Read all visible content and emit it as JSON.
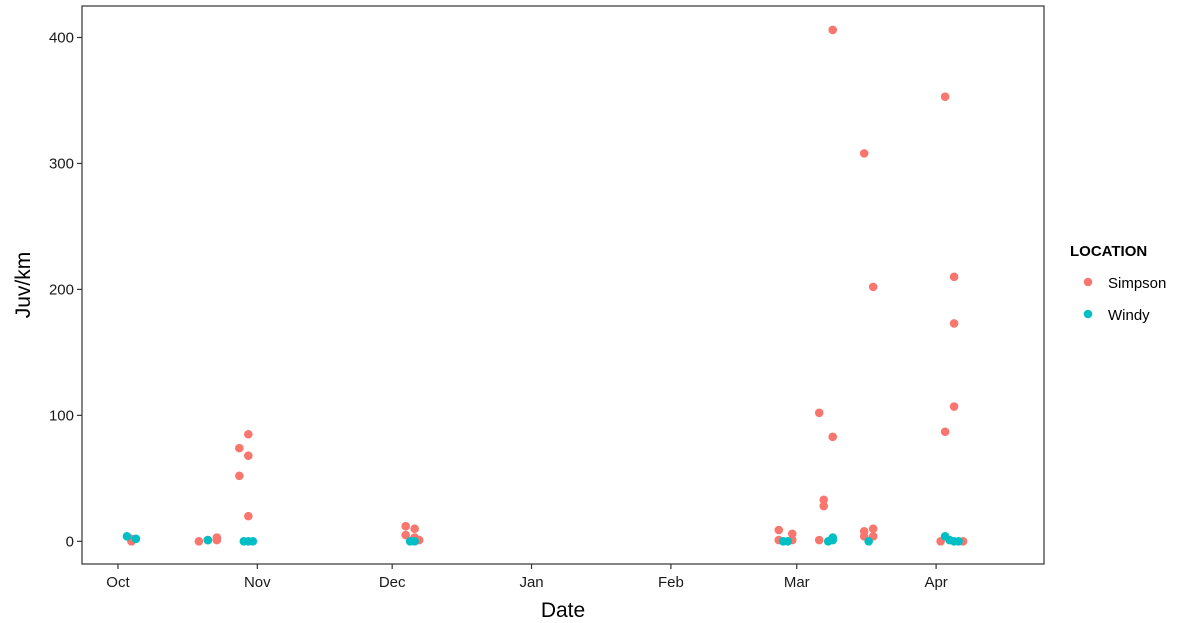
{
  "chart_data": {
    "type": "scatter",
    "title": "",
    "xlabel": "Date",
    "ylabel": "Juv/km",
    "x_axis": {
      "type": "date",
      "range": [
        "2014-09-23",
        "2015-04-25"
      ],
      "tick_values": [
        "2014-10-01",
        "2014-11-01",
        "2014-12-01",
        "2015-01-01",
        "2015-02-01",
        "2015-03-01",
        "2015-04-01"
      ],
      "tick_labels": [
        "Oct",
        "Nov",
        "Dec",
        "Jan",
        "Feb",
        "Mar",
        "Apr"
      ]
    },
    "y_axis": {
      "range": [
        -18,
        425
      ],
      "tick_values": [
        0,
        100,
        200,
        300,
        400
      ],
      "tick_labels": [
        "0",
        "100",
        "200",
        "300",
        "400"
      ]
    },
    "grid": false,
    "legend": {
      "title": "LOCATION",
      "position": "right",
      "entries": [
        "Simpson",
        "Windy"
      ]
    },
    "series": [
      {
        "name": "Simpson",
        "color": "#F8766D",
        "points": [
          {
            "x": "2014-10-04",
            "y": 0
          },
          {
            "x": "2014-10-04",
            "y": 2
          },
          {
            "x": "2014-10-19",
            "y": 0
          },
          {
            "x": "2014-10-21",
            "y": 1
          },
          {
            "x": "2014-10-23",
            "y": 1
          },
          {
            "x": "2014-10-23",
            "y": 3
          },
          {
            "x": "2014-10-28",
            "y": 74
          },
          {
            "x": "2014-10-28",
            "y": 52
          },
          {
            "x": "2014-10-30",
            "y": 85
          },
          {
            "x": "2014-10-30",
            "y": 68
          },
          {
            "x": "2014-10-30",
            "y": 20
          },
          {
            "x": "2014-12-04",
            "y": 12
          },
          {
            "x": "2014-12-04",
            "y": 5
          },
          {
            "x": "2014-12-06",
            "y": 10
          },
          {
            "x": "2014-12-06",
            "y": 3
          },
          {
            "x": "2014-12-07",
            "y": 1
          },
          {
            "x": "2015-02-25",
            "y": 9
          },
          {
            "x": "2015-02-25",
            "y": 1
          },
          {
            "x": "2015-02-28",
            "y": 6
          },
          {
            "x": "2015-02-28",
            "y": 1
          },
          {
            "x": "2015-03-06",
            "y": 102
          },
          {
            "x": "2015-03-06",
            "y": 1
          },
          {
            "x": "2015-03-07",
            "y": 33
          },
          {
            "x": "2015-03-07",
            "y": 28
          },
          {
            "x": "2015-03-09",
            "y": 406
          },
          {
            "x": "2015-03-09",
            "y": 83
          },
          {
            "x": "2015-03-16",
            "y": 308
          },
          {
            "x": "2015-03-16",
            "y": 8
          },
          {
            "x": "2015-03-16",
            "y": 4
          },
          {
            "x": "2015-03-18",
            "y": 202
          },
          {
            "x": "2015-03-18",
            "y": 10
          },
          {
            "x": "2015-03-18",
            "y": 4
          },
          {
            "x": "2015-04-02",
            "y": 0
          },
          {
            "x": "2015-04-03",
            "y": 353
          },
          {
            "x": "2015-04-03",
            "y": 87
          },
          {
            "x": "2015-04-05",
            "y": 210
          },
          {
            "x": "2015-04-05",
            "y": 173
          },
          {
            "x": "2015-04-05",
            "y": 107
          },
          {
            "x": "2015-04-07",
            "y": 0
          }
        ]
      },
      {
        "name": "Windy",
        "color": "#00BFC4",
        "points": [
          {
            "x": "2014-10-03",
            "y": 4
          },
          {
            "x": "2014-10-05",
            "y": 2
          },
          {
            "x": "2014-10-21",
            "y": 1
          },
          {
            "x": "2014-10-29",
            "y": 0
          },
          {
            "x": "2014-10-30",
            "y": 0
          },
          {
            "x": "2014-10-31",
            "y": 0
          },
          {
            "x": "2014-12-05",
            "y": 0
          },
          {
            "x": "2014-12-06",
            "y": 0
          },
          {
            "x": "2015-02-26",
            "y": 0
          },
          {
            "x": "2015-02-27",
            "y": 0
          },
          {
            "x": "2015-03-08",
            "y": 0
          },
          {
            "x": "2015-03-09",
            "y": 1
          },
          {
            "x": "2015-03-09",
            "y": 3
          },
          {
            "x": "2015-03-17",
            "y": 0
          },
          {
            "x": "2015-04-03",
            "y": 4
          },
          {
            "x": "2015-04-04",
            "y": 1
          },
          {
            "x": "2015-04-05",
            "y": 0
          },
          {
            "x": "2015-04-06",
            "y": 0
          }
        ]
      }
    ]
  }
}
